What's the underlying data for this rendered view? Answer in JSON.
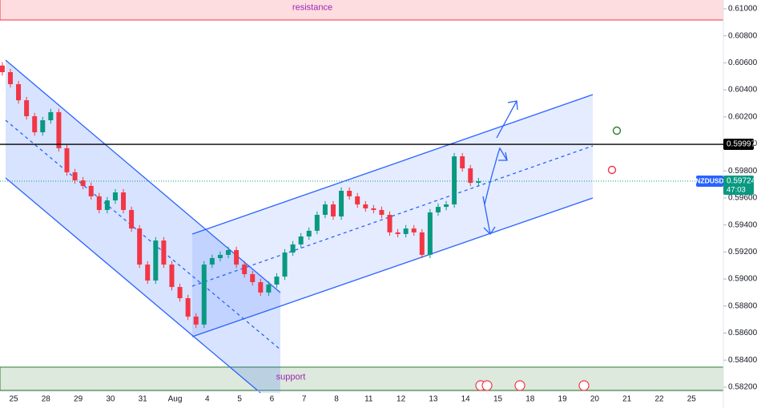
{
  "chart_data": {
    "type": "candlestick",
    "symbol": "NZDUSD",
    "countdown": "47:03",
    "up_color": "#089981",
    "down_color": "#f23645",
    "categories": [
      "25",
      "28",
      "29",
      "30",
      "31",
      "Aug",
      "4",
      "5",
      "6",
      "7",
      "8",
      "11",
      "12",
      "13",
      "14",
      "15",
      "18",
      "19",
      "20",
      "21",
      "22",
      "25"
    ],
    "candles": [
      [
        0.6058,
        0.60605,
        0.60506,
        0.60531
      ],
      [
        0.60531,
        0.60556,
        0.60417,
        0.60442
      ],
      [
        0.60442,
        0.60467,
        0.60298,
        0.60323
      ],
      [
        0.60323,
        0.60348,
        0.6018,
        0.60205
      ],
      [
        0.60205,
        0.6023,
        0.60061,
        0.60086
      ],
      [
        0.60086,
        0.602,
        0.60061,
        0.60175
      ],
      [
        0.60175,
        0.6026,
        0.6015,
        0.60235
      ],
      [
        0.60235,
        0.6026,
        0.59943,
        0.59968
      ],
      [
        0.59968,
        0.59993,
        0.59765,
        0.5979
      ],
      [
        0.5979,
        0.59815,
        0.59705,
        0.5973
      ],
      [
        0.5973,
        0.59755,
        0.59664,
        0.59689
      ],
      [
        0.59689,
        0.59714,
        0.59587,
        0.59612
      ],
      [
        0.59612,
        0.59637,
        0.59486,
        0.59511
      ],
      [
        0.59511,
        0.59607,
        0.59486,
        0.59582
      ],
      [
        0.59582,
        0.59666,
        0.59557,
        0.59641
      ],
      [
        0.59641,
        0.59666,
        0.59486,
        0.59511
      ],
      [
        0.59511,
        0.59536,
        0.59349,
        0.59374
      ],
      [
        0.59374,
        0.59399,
        0.59082,
        0.59107
      ],
      [
        0.59107,
        0.59132,
        0.58964,
        0.58989
      ],
      [
        0.58989,
        0.5931,
        0.58964,
        0.59285
      ],
      [
        0.59285,
        0.5931,
        0.59082,
        0.59107
      ],
      [
        0.59107,
        0.59132,
        0.58916,
        0.58941
      ],
      [
        0.58941,
        0.58966,
        0.58833,
        0.58858
      ],
      [
        0.58858,
        0.58883,
        0.58697,
        0.58722
      ],
      [
        0.58722,
        0.58747,
        0.58638,
        0.58663
      ],
      [
        0.58663,
        0.59132,
        0.58638,
        0.59107
      ],
      [
        0.59107,
        0.5918,
        0.59082,
        0.59155
      ],
      [
        0.59155,
        0.59204,
        0.5913,
        0.59179
      ],
      [
        0.59179,
        0.59239,
        0.59154,
        0.59214
      ],
      [
        0.59214,
        0.59239,
        0.59082,
        0.59107
      ],
      [
        0.59107,
        0.59132,
        0.59011,
        0.59036
      ],
      [
        0.59036,
        0.59061,
        0.58952,
        0.58977
      ],
      [
        0.58977,
        0.59002,
        0.58875,
        0.589
      ],
      [
        0.589,
        0.58984,
        0.58875,
        0.58959
      ],
      [
        0.58959,
        0.59043,
        0.58934,
        0.59018
      ],
      [
        0.59018,
        0.59221,
        0.58993,
        0.59196
      ],
      [
        0.59196,
        0.59281,
        0.59171,
        0.59256
      ],
      [
        0.59256,
        0.5934,
        0.59231,
        0.59315
      ],
      [
        0.59315,
        0.59382,
        0.5929,
        0.59357
      ],
      [
        0.59357,
        0.595,
        0.59332,
        0.59475
      ],
      [
        0.59475,
        0.59577,
        0.5945,
        0.59552
      ],
      [
        0.59552,
        0.59577,
        0.59438,
        0.59463
      ],
      [
        0.59463,
        0.59678,
        0.59438,
        0.59653
      ],
      [
        0.59653,
        0.59678,
        0.59587,
        0.59612
      ],
      [
        0.59612,
        0.59637,
        0.59527,
        0.59552
      ],
      [
        0.59552,
        0.59577,
        0.59498,
        0.59523
      ],
      [
        0.59523,
        0.59548,
        0.59486,
        0.59511
      ],
      [
        0.59511,
        0.59536,
        0.5945,
        0.59475
      ],
      [
        0.59475,
        0.595,
        0.5932,
        0.59345
      ],
      [
        0.59345,
        0.5937,
        0.59308,
        0.59333
      ],
      [
        0.59333,
        0.59399,
        0.59308,
        0.59374
      ],
      [
        0.59374,
        0.59399,
        0.5932,
        0.59345
      ],
      [
        0.59345,
        0.5937,
        0.59154,
        0.59179
      ],
      [
        0.59179,
        0.59518,
        0.59154,
        0.59493
      ],
      [
        0.59493,
        0.59559,
        0.59468,
        0.59534
      ],
      [
        0.59534,
        0.59577,
        0.59509,
        0.59552
      ],
      [
        0.59552,
        0.59933,
        0.59527,
        0.59908
      ],
      [
        0.59908,
        0.59933,
        0.59794,
        0.59819
      ],
      [
        0.59819,
        0.59844,
        0.59687,
        0.59712
      ],
      [
        0.59712,
        0.59749,
        0.59687,
        0.59724
      ]
    ],
    "ylim": [
      0.5817,
      0.61065
    ],
    "yticks": [
      {
        "value": 0.61,
        "label": "0.61000"
      },
      {
        "value": 0.608,
        "label": "0.60800"
      },
      {
        "value": 0.606,
        "label": "0.60600"
      },
      {
        "value": 0.604,
        "label": "0.60400"
      },
      {
        "value": 0.602,
        "label": "0.60200"
      },
      {
        "value": 0.6,
        "label": "0.60000"
      },
      {
        "value": 0.598,
        "label": "0.59800"
      },
      {
        "value": 0.596,
        "label": "0.59600"
      },
      {
        "value": 0.594,
        "label": "0.59400"
      },
      {
        "value": 0.592,
        "label": "0.59200"
      },
      {
        "value": 0.59,
        "label": "0.59000"
      },
      {
        "value": 0.588,
        "label": "0.58800"
      },
      {
        "value": 0.586,
        "label": "0.58600"
      },
      {
        "value": 0.584,
        "label": "0.58400"
      },
      {
        "value": 0.582,
        "label": "0.58200"
      }
    ],
    "zones": [
      {
        "name": "resistance",
        "range": [
          0.60917,
          0.611
        ],
        "color": "#f23645"
      },
      {
        "name": "support",
        "range": [
          0.58176,
          0.58348
        ],
        "color": "#2e7d32"
      }
    ],
    "level": {
      "value": 0.59997,
      "label": "0.59997"
    },
    "last_price": {
      "value": 0.59724,
      "label": "0.59724"
    }
  }
}
